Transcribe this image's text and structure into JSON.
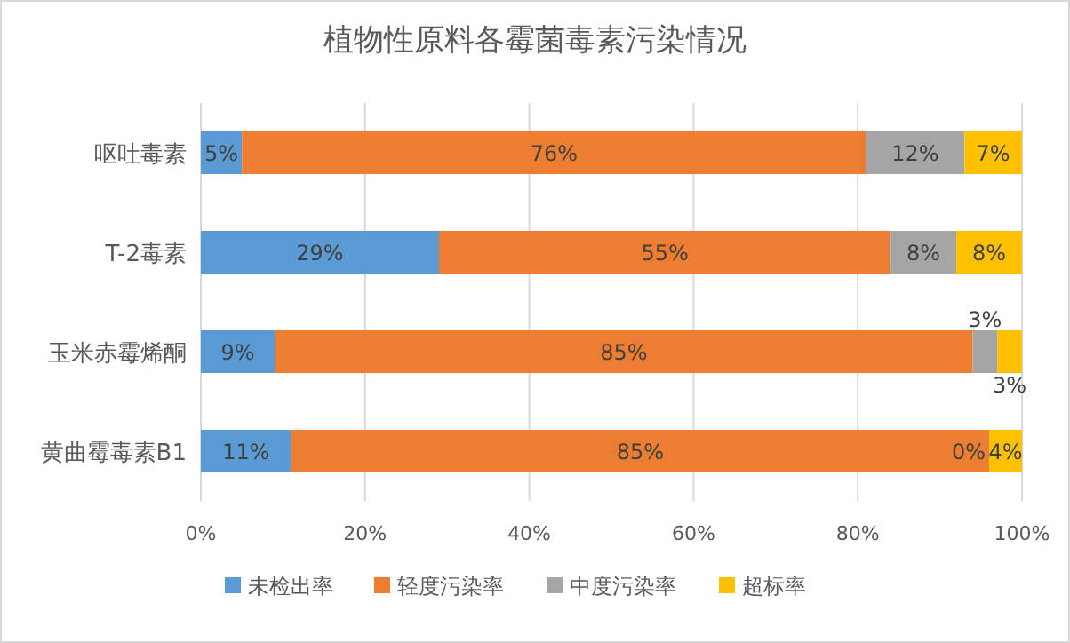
{
  "chart_data": {
    "type": "bar",
    "orientation": "horizontal",
    "stacked": true,
    "title": "植物性原料各霉菌毒素污染情况",
    "categories": [
      "呕吐毒素",
      "T-2毒素",
      "玉米赤霉烯酮",
      "黄曲霉毒素B1"
    ],
    "series": [
      {
        "name": "未检出率",
        "color": "#5b9bd5",
        "values": [
          5,
          29,
          9,
          11
        ],
        "value_labels": [
          "5%",
          "29%",
          "9%",
          "11%"
        ]
      },
      {
        "name": "轻度污染率",
        "color": "#ed7d31",
        "values": [
          76,
          55,
          85,
          85
        ],
        "value_labels": [
          "76%",
          "55%",
          "85%",
          "85%"
        ]
      },
      {
        "name": "中度污染率",
        "color": "#a5a5a5",
        "values": [
          12,
          8,
          3,
          0
        ],
        "value_labels": [
          "12%",
          "8%",
          "3%",
          "0%"
        ]
      },
      {
        "name": "超标率",
        "color": "#ffc000",
        "values": [
          7,
          8,
          3,
          4
        ],
        "value_labels": [
          "7%",
          "8%",
          "3%",
          "4%"
        ]
      }
    ],
    "xlim": [
      0,
      100
    ],
    "xticks": [
      {
        "value": 0,
        "label": "0%"
      },
      {
        "value": 20,
        "label": "20%"
      },
      {
        "value": 40,
        "label": "40%"
      },
      {
        "value": 60,
        "label": "60%"
      },
      {
        "value": 80,
        "label": "80%"
      },
      {
        "value": 100,
        "label": "100%"
      }
    ],
    "grid": "x",
    "legend": "bottom"
  }
}
